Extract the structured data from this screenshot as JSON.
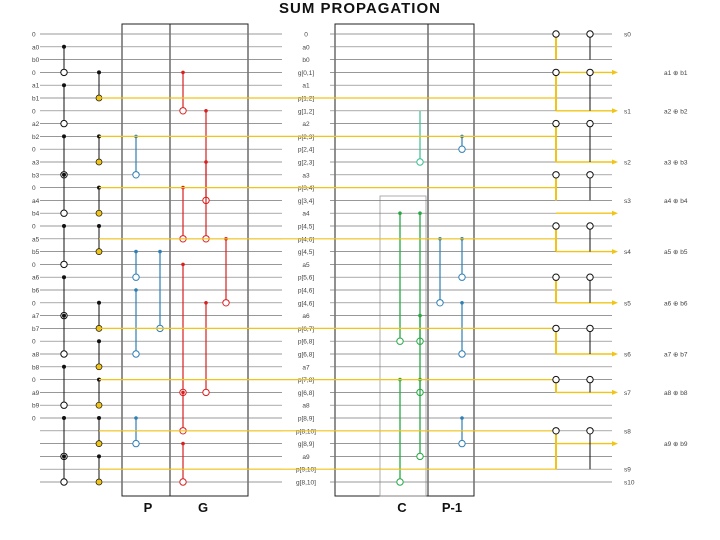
{
  "title": "SUM PROPAGATION",
  "colors": {
    "wire": "#777777",
    "box": "#222222",
    "black": "#111111",
    "yellow": "#f0c419",
    "red": "#d92020",
    "blue": "#2f7fb5",
    "green": "#27a844",
    "teal": "#3bbf8f"
  },
  "left_labels": [
    "0",
    "a0",
    "b0",
    "0",
    "a1",
    "b1",
    "0",
    "a2",
    "b2",
    "0",
    "a3",
    "b3",
    "0",
    "a4",
    "b4",
    "0",
    "a5",
    "b5",
    "0",
    "a6",
    "b6",
    "0",
    "a7",
    "b7",
    "0",
    "a8",
    "b8",
    "0",
    "a9",
    "b9",
    "0"
  ],
  "middle_labels": [
    "0",
    "a0",
    "b0",
    "g[0,1]",
    "a1",
    "p[1,2]",
    "g[1,2]",
    "a2",
    "p[2,3]",
    "p[2,4]",
    "g[2,3]",
    "a3",
    "p[3,4]",
    "g[3,4]",
    "a4",
    "p[4,5]",
    "p[4,6]",
    "g[4,5]",
    "a5",
    "p[5,6]",
    "p[4,6]",
    "g[4,6]",
    "a6",
    "p[6,7]",
    "p[6,8]",
    "g[6,8]",
    "a7",
    "p[7,8]",
    "g[6,8]",
    "a8",
    "p[8,9]",
    "p[8,10]",
    "g[8,9]",
    "a9",
    "p[9,10]",
    "g[8,10]"
  ],
  "right_labels": [
    "s0",
    "s1",
    "s2",
    "s3",
    "s4",
    "s5",
    "s6",
    "s7",
    "s8",
    "s9",
    "s10"
  ],
  "xor_labels": [
    "a1 ⊕ b1",
    "a2 ⊕ b2",
    "a3 ⊕ b3",
    "a4 ⊕ b4",
    "a5 ⊕ b5",
    "a6 ⊕ b6",
    "a7 ⊕ b7",
    "a8 ⊕ b8",
    "a9 ⊕ b9"
  ],
  "block_labels": [
    "P",
    "G",
    "C",
    "P-1"
  ]
}
